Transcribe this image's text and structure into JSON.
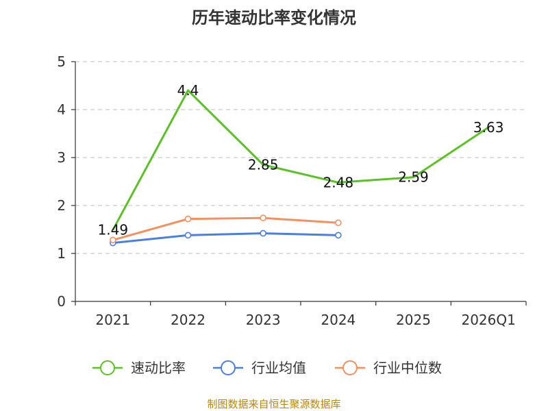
{
  "chart_data": {
    "type": "line",
    "title": "历年速动比率变化情况",
    "categories": [
      "2021",
      "2022",
      "2023",
      "2024",
      "2025",
      "2026Q1"
    ],
    "ylim": [
      0,
      5
    ],
    "yticks": [
      "0",
      "1",
      "2",
      "3",
      "4",
      "5"
    ],
    "grid": true,
    "legend_position": "bottom",
    "series": [
      {
        "name": "速动比率",
        "color": "#5cc027",
        "values": [
          1.49,
          4.4,
          2.85,
          2.48,
          2.59,
          3.63
        ],
        "labels": [
          "1.49",
          "4.4",
          "2.85",
          "2.48",
          "2.59",
          "3.63"
        ],
        "show_points": false
      },
      {
        "name": "行业均值",
        "color": "#4a7fdb",
        "values": [
          1.22,
          1.38,
          1.42,
          1.38,
          null,
          null
        ],
        "show_points": true
      },
      {
        "name": "行业中位数",
        "color": "#f39060",
        "values": [
          1.28,
          1.72,
          1.74,
          1.64,
          null,
          null
        ],
        "show_points": true
      }
    ]
  },
  "source_text": "制图数据来自恒生聚源数据库"
}
